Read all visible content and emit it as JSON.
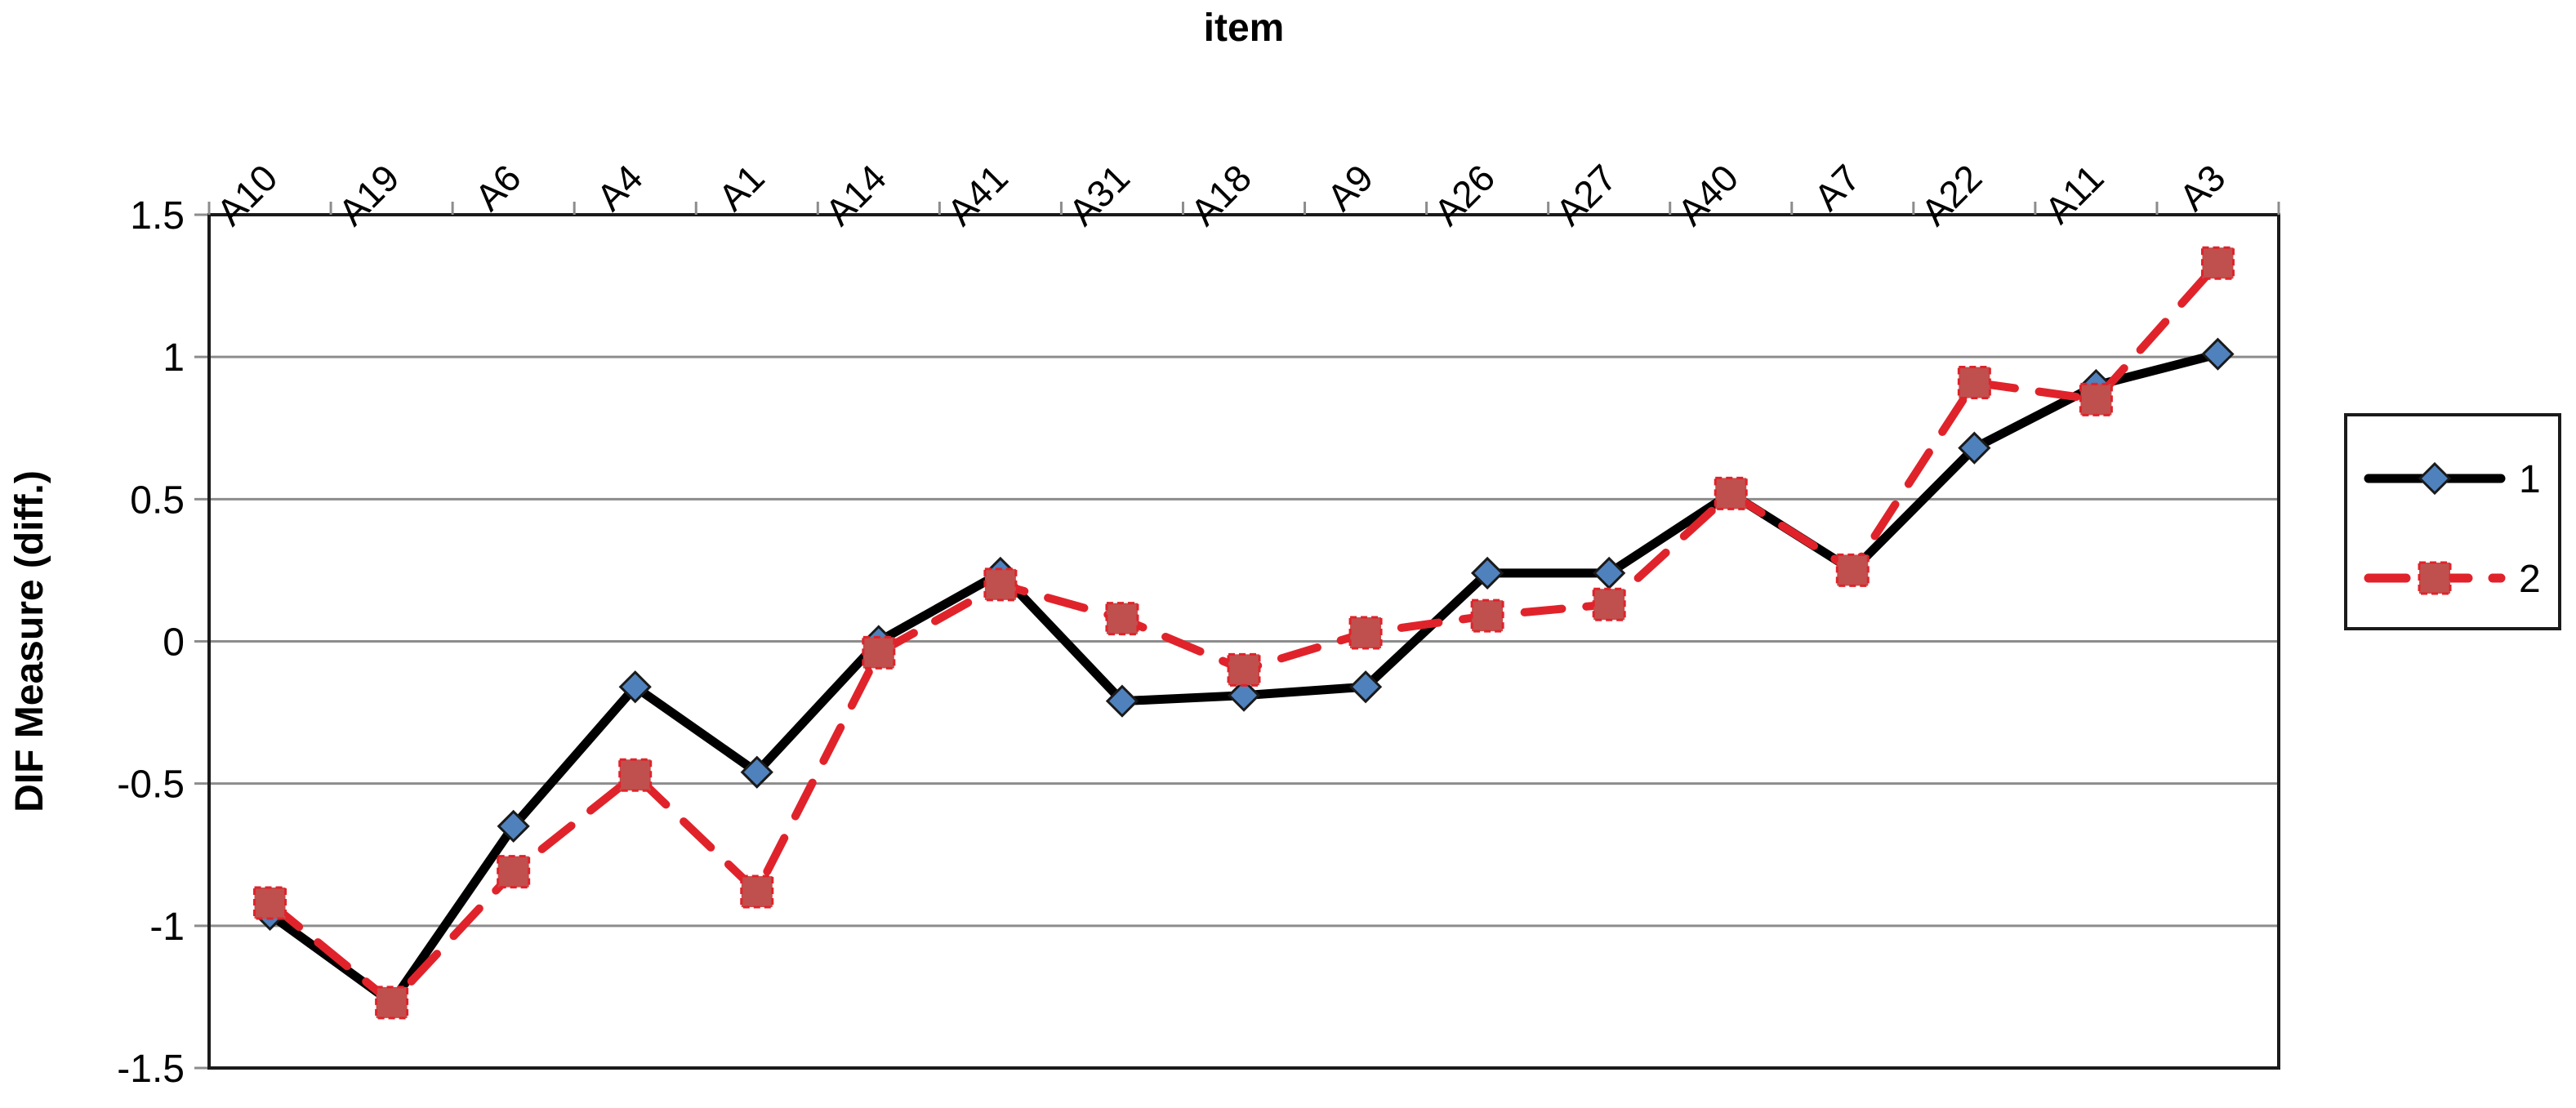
{
  "chart_data": {
    "type": "line",
    "title": "",
    "xlabel": "item",
    "ylabel": "DIF Measure (diff.)",
    "ylim": [
      -1.5,
      1.5
    ],
    "yticks": [
      1.5,
      1,
      0.5,
      0,
      -0.5,
      -1,
      -1.5
    ],
    "ytick_labels": [
      "1.5",
      "1",
      "0.5",
      "0",
      "-0.5",
      "-1",
      "-1.5"
    ],
    "grid": true,
    "x_axis_position": "top",
    "legend_position": "right",
    "categories": [
      "A10",
      "A19",
      "A6",
      "A4",
      "A1",
      "A14",
      "A41",
      "A31",
      "A18",
      "A9",
      "A26",
      "A27",
      "A40",
      "A7",
      "A22",
      "A11",
      "A3"
    ],
    "series": [
      {
        "name": "1",
        "values": [
          -0.96,
          -1.27,
          -0.65,
          -0.16,
          -0.46,
          0.0,
          0.24,
          -0.21,
          -0.19,
          -0.16,
          0.24,
          0.24,
          0.52,
          0.25,
          0.68,
          0.9,
          1.01
        ],
        "color": "#000000",
        "marker_color": "#4f81bd",
        "line_style": "solid",
        "marker": "diamond"
      },
      {
        "name": "2",
        "values": [
          -0.92,
          -1.27,
          -0.81,
          -0.47,
          -0.88,
          -0.04,
          0.2,
          0.08,
          -0.1,
          0.03,
          0.09,
          0.13,
          0.52,
          0.25,
          0.91,
          0.85,
          1.33
        ],
        "color": "#e0232b",
        "marker_color": "#c0504d",
        "line_style": "dashed",
        "marker": "square"
      }
    ]
  }
}
